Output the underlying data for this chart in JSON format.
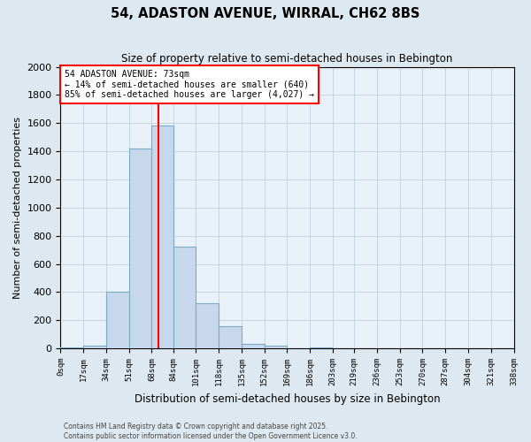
{
  "title": "54, ADASTON AVENUE, WIRRAL, CH62 8BS",
  "subtitle": "Size of property relative to semi-detached houses in Bebington",
  "xlabel": "Distribution of semi-detached houses by size in Bebington",
  "ylabel": "Number of semi-detached properties",
  "bin_edges": [
    0,
    17,
    34,
    51,
    68,
    84,
    101,
    118,
    135,
    152,
    169,
    186,
    203,
    219,
    236,
    253,
    270,
    287,
    304,
    321,
    338
  ],
  "bin_labels": [
    "0sqm",
    "17sqm",
    "34sqm",
    "51sqm",
    "68sqm",
    "84sqm",
    "101sqm",
    "118sqm",
    "135sqm",
    "152sqm",
    "169sqm",
    "186sqm",
    "203sqm",
    "219sqm",
    "236sqm",
    "253sqm",
    "270sqm",
    "287sqm",
    "304sqm",
    "321sqm",
    "338sqm"
  ],
  "counts": [
    5,
    20,
    400,
    1420,
    1580,
    720,
    320,
    160,
    30,
    20,
    0,
    5,
    0,
    0,
    0,
    0,
    0,
    0,
    0,
    0
  ],
  "property_size": 73,
  "bar_color": "#c8d8ec",
  "bar_edge_color": "#7aaac8",
  "vline_color": "red",
  "annotation_text": "54 ADASTON AVENUE: 73sqm\n← 14% of semi-detached houses are smaller (640)\n85% of semi-detached houses are larger (4,027) →",
  "annotation_box_color": "white",
  "annotation_box_edge": "red",
  "footer_text": "Contains HM Land Registry data © Crown copyright and database right 2025.\nContains public sector information licensed under the Open Government Licence v3.0.",
  "ylim": [
    0,
    2000
  ],
  "background_color": "#dde8f0",
  "plot_background_color": "#e8f0f8",
  "grid_color": "#b8ccd8"
}
